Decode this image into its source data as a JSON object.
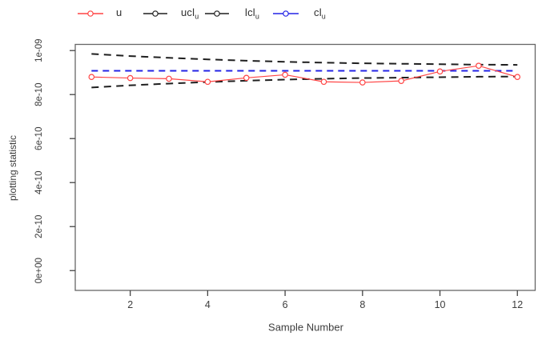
{
  "app": {
    "description": "R control chart (u-chart) plot window"
  },
  "legend": {
    "items": [
      {
        "label": "u",
        "sub": "",
        "color": "#ff4444"
      },
      {
        "label": "ucl",
        "sub": "u",
        "color": "#1f1f1f"
      },
      {
        "label": "lcl",
        "sub": "u",
        "color": "#1f1f1f"
      },
      {
        "label": "cl",
        "sub": "u",
        "color": "#2323e6"
      }
    ]
  },
  "chart_data": {
    "type": "line",
    "title": "",
    "xlabel": "Sample Number",
    "ylabel": "plotting statistic",
    "x": [
      1,
      2,
      3,
      4,
      5,
      6,
      7,
      8,
      9,
      10,
      11,
      12
    ],
    "series": [
      {
        "name": "u",
        "color": "#ff4444",
        "style": "solid",
        "marker": "open-circle",
        "values": [
          8.8e-10,
          8.75e-10,
          8.72e-10,
          8.58e-10,
          8.76e-10,
          8.9e-10,
          8.58e-10,
          8.55e-10,
          8.62e-10,
          9.05e-10,
          9.31e-10,
          8.8e-10
        ]
      },
      {
        "name": "ucl_u",
        "color": "#1f1f1f",
        "style": "dashed",
        "marker": "none",
        "values": [
          9.85e-10,
          9.75e-10,
          9.67e-10,
          9.6e-10,
          9.54e-10,
          9.49e-10,
          9.45e-10,
          9.42e-10,
          9.4e-10,
          9.38e-10,
          9.36e-10,
          9.35e-10
        ]
      },
      {
        "name": "lcl_u",
        "color": "#1f1f1f",
        "style": "dashed",
        "marker": "none",
        "values": [
          8.32e-10,
          8.42e-10,
          8.5e-10,
          8.57e-10,
          8.63e-10,
          8.68e-10,
          8.72e-10,
          8.75e-10,
          8.77e-10,
          8.79e-10,
          8.81e-10,
          8.82e-10
        ]
      },
      {
        "name": "cl_u",
        "color": "#2323e6",
        "style": "dashed",
        "marker": "none",
        "values": [
          9.08e-10,
          9.08e-10,
          9.08e-10,
          9.08e-10,
          9.08e-10,
          9.08e-10,
          9.08e-10,
          9.08e-10,
          9.08e-10,
          9.08e-10,
          9.08e-10,
          9.08e-10
        ]
      }
    ],
    "x_ticks": [
      2,
      4,
      6,
      8,
      10,
      12
    ],
    "y_ticks": [
      {
        "label": "0e+00",
        "value": 0
      },
      {
        "label": "2e-10",
        "value": 2e-10
      },
      {
        "label": "4e-10",
        "value": 4e-10
      },
      {
        "label": "6e-10",
        "value": 6e-10
      },
      {
        "label": "8e-10",
        "value": 8e-10
      },
      {
        "label": "1e-09",
        "value": 1e-09
      }
    ],
    "xlim": [
      0.58,
      12.46
    ],
    "ylim": [
      -9e-11,
      1.028e-09
    ],
    "grid": false,
    "legend_position": "top",
    "frame_color": "#666666",
    "tick_label_color": "#3d3d3d"
  }
}
